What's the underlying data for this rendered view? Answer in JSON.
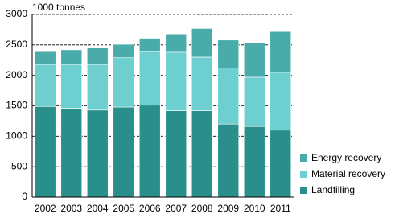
{
  "chart_data": {
    "type": "stacked_bar",
    "y_label": "1000 tonnes",
    "categories": [
      "2002",
      "2003",
      "2004",
      "2005",
      "2006",
      "2007",
      "2008",
      "2009",
      "2010",
      "2011"
    ],
    "series": [
      {
        "name": "Landfilling",
        "color": "#2a8e8a",
        "values": [
          1490,
          1460,
          1430,
          1480,
          1510,
          1420,
          1420,
          1200,
          1160,
          1100
        ]
      },
      {
        "name": "Material recovery",
        "color": "#6dcfcf",
        "values": [
          690,
          720,
          750,
          810,
          880,
          960,
          880,
          920,
          810,
          950
        ]
      },
      {
        "name": "Energy recovery",
        "color": "#4aabab",
        "values": [
          210,
          240,
          270,
          220,
          220,
          300,
          470,
          460,
          560,
          670
        ]
      }
    ],
    "ylim": [
      0,
      3000
    ],
    "yticks": [
      0,
      500,
      1000,
      1500,
      2000,
      2500,
      3000
    ],
    "grid": true
  }
}
